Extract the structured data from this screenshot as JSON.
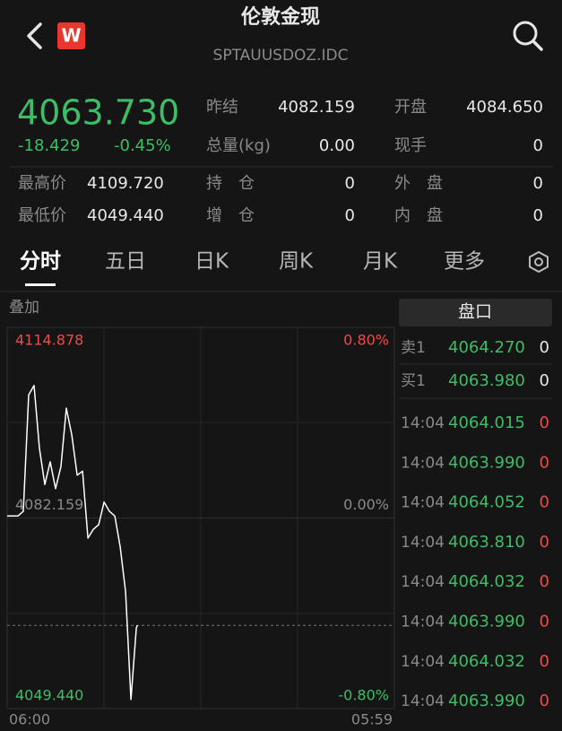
{
  "header": {
    "title": "伦敦金现",
    "subtitle": "SPTAUUSDOZ.IDC",
    "logo": "W"
  },
  "quote": {
    "price": "4063.730",
    "change": "-18.429",
    "change_pct": "-0.45%"
  },
  "stats": [
    {
      "label": "昨结",
      "value": "4082.159"
    },
    {
      "label": "开盘",
      "value": "4084.650"
    },
    {
      "label": "总量(kg)",
      "value": "0.00"
    },
    {
      "label": "现手",
      "value": "0"
    },
    {
      "label": "最高价",
      "value": "4109.720"
    },
    {
      "label": "持　仓",
      "value": "0"
    },
    {
      "label": "外　盘",
      "value": "0"
    },
    {
      "label": "最低价",
      "value": "4049.440"
    },
    {
      "label": "增　仓",
      "value": "0"
    },
    {
      "label": "内　盘",
      "value": "0"
    }
  ],
  "tabs": [
    "分时",
    "五日",
    "日K",
    "周K",
    "月K",
    "更多"
  ],
  "selected_tab": 0,
  "overlay": "叠加",
  "chart_data": {
    "type": "line",
    "x": [
      "06:00",
      "06:20",
      "06:40",
      "07:00",
      "07:20",
      "07:40",
      "08:00",
      "08:20",
      "08:40",
      "09:00",
      "09:20",
      "09:40",
      "10:00",
      "10:20",
      "10:40",
      "11:00",
      "11:20",
      "11:40",
      "12:00",
      "12:20",
      "12:40",
      "13:00",
      "13:20",
      "13:40",
      "14:00",
      "14:04"
    ],
    "values": [
      4082.5,
      4082.5,
      4082.5,
      4083.3,
      4103.3,
      4104.9,
      4094.1,
      4087.9,
      4091.8,
      4087.2,
      4091.0,
      4101.0,
      4096.4,
      4089.5,
      4090.2,
      4078.7,
      4080.2,
      4081.0,
      4084.9,
      4083.3,
      4082.5,
      4077.2,
      4069.5,
      4051.0,
      4063.3,
      4063.73
    ],
    "color": "#ffffff",
    "xlim": [
      "06:00",
      "05:59"
    ],
    "ylim": [
      4049.44,
      4114.878
    ],
    "yticks": [
      {
        "value": 4114.878,
        "label": "4114.878"
      },
      {
        "value": 4082.159,
        "label": "4082.159"
      },
      {
        "value": 4049.44,
        "label": "4049.440"
      }
    ],
    "y2lim": [
      -0.8,
      0.8
    ],
    "y2ticks": [
      {
        "value": 0.8,
        "label": "0.80%"
      },
      {
        "value": 0,
        "label": "0.00%"
      },
      {
        "value": -0.8,
        "label": "-0.80%"
      }
    ]
  },
  "order_book": {
    "title": "盘口",
    "levels": [
      {
        "label": "卖1",
        "price": "4064.270",
        "volume": "0"
      },
      {
        "label": "买1",
        "price": "4063.980",
        "volume": "0"
      }
    ],
    "trades": [
      {
        "time": "14:04",
        "price": "4064.015",
        "volume": "0"
      },
      {
        "time": "14:04",
        "price": "4063.990",
        "volume": "0"
      },
      {
        "time": "14:04",
        "price": "4064.052",
        "volume": "0"
      },
      {
        "time": "14:04",
        "price": "4063.810",
        "volume": "0"
      },
      {
        "time": "14:04",
        "price": "4064.032",
        "volume": "0"
      },
      {
        "time": "14:04",
        "price": "4063.990",
        "volume": "0"
      },
      {
        "time": "14:04",
        "price": "4064.032",
        "volume": "0"
      },
      {
        "time": "14:04",
        "price": "4063.990",
        "volume": "0"
      }
    ]
  }
}
